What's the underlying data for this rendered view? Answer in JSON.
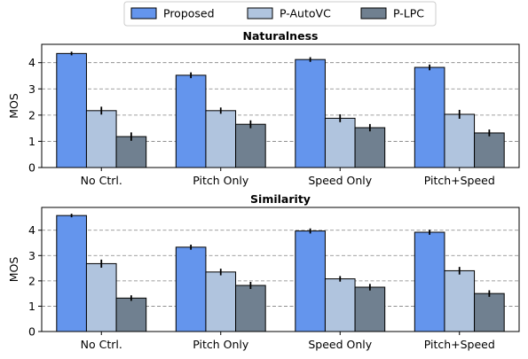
{
  "legend": {
    "entries": [
      "Proposed",
      "P-AutoVC",
      "P-LPC"
    ],
    "placement": "top-center",
    "columns": 3
  },
  "colors": {
    "Proposed": "#6495ED",
    "P-AutoVC": "#B0C4DE",
    "P-LPC": "#708090",
    "grid": "#808080",
    "edge": "#000000",
    "error_bar": "#000000"
  },
  "chart_data": [
    {
      "type": "bar",
      "title": "Naturalness",
      "xlabel": "",
      "ylabel": "MOS",
      "ylim": [
        0,
        4.7
      ],
      "yticks": [
        0,
        1,
        2,
        3,
        4
      ],
      "grid": "horizontal-dashed",
      "categories": [
        "No Ctrl.",
        "Pitch Only",
        "Speed Only",
        "Pitch+Speed"
      ],
      "series": [
        {
          "name": "Proposed",
          "values": [
            4.35,
            3.52,
            4.12,
            3.82
          ],
          "errors": [
            0.07,
            0.11,
            0.09,
            0.11
          ]
        },
        {
          "name": "P-AutoVC",
          "values": [
            2.17,
            2.17,
            1.88,
            2.03
          ],
          "errors": [
            0.15,
            0.12,
            0.15,
            0.17
          ]
        },
        {
          "name": "P-LPC",
          "values": [
            1.18,
            1.65,
            1.52,
            1.32
          ],
          "errors": [
            0.16,
            0.15,
            0.14,
            0.13
          ]
        }
      ]
    },
    {
      "type": "bar",
      "title": "Similarity",
      "xlabel": "",
      "ylabel": "MOS",
      "ylim": [
        0,
        4.9
      ],
      "yticks": [
        0,
        1,
        2,
        3,
        4
      ],
      "grid": "horizontal-dashed",
      "categories": [
        "No Ctrl.",
        "Pitch Only",
        "Speed Only",
        "Pitch+Speed"
      ],
      "series": [
        {
          "name": "Proposed",
          "values": [
            4.58,
            3.33,
            3.97,
            3.92
          ],
          "errors": [
            0.07,
            0.1,
            0.1,
            0.1
          ]
        },
        {
          "name": "P-AutoVC",
          "values": [
            2.68,
            2.35,
            2.08,
            2.4
          ],
          "errors": [
            0.16,
            0.13,
            0.11,
            0.15
          ]
        },
        {
          "name": "P-LPC",
          "values": [
            1.32,
            1.82,
            1.75,
            1.5
          ],
          "errors": [
            0.11,
            0.14,
            0.13,
            0.13
          ]
        }
      ]
    }
  ]
}
